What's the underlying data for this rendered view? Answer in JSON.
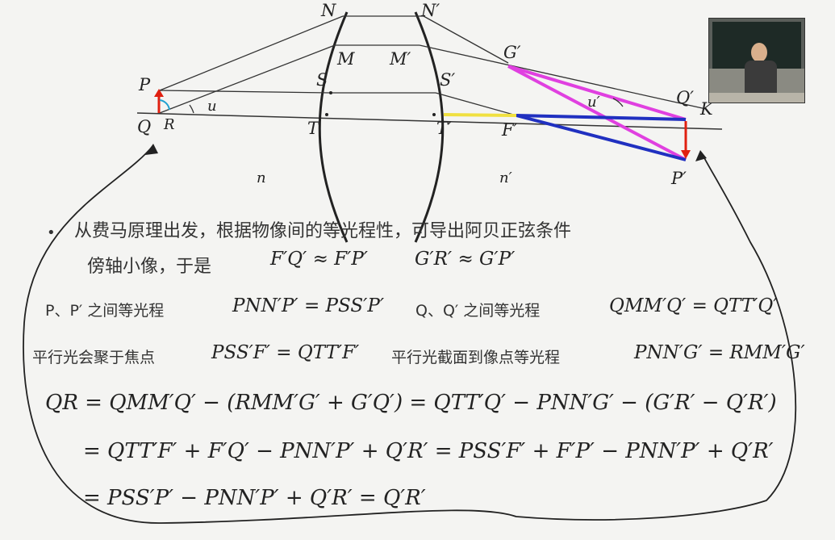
{
  "diagram": {
    "labels": {
      "N": "N",
      "N_prime": "N′",
      "M": "M",
      "M_prime": "M′",
      "G_prime": "G′",
      "P": "P",
      "S": "S",
      "S_prime": "S′",
      "u": "u",
      "u_prime": "u′",
      "Q": "Q",
      "R": "R",
      "T": "T",
      "T_prime": "T′",
      "F_prime": "F′",
      "Q_prime": "Q′",
      "K": "K",
      "P_prime": "P′",
      "n": "n",
      "n_prime": "n′"
    },
    "colors": {
      "rays": "#333333",
      "magenta": "#e040e0",
      "blue": "#2030c0",
      "yellow": "#f0e040",
      "arrow_red": "#e02010",
      "angle_cyan": "#20a0d0"
    }
  },
  "video_inset": {
    "icon": "lecturer-video-icon"
  },
  "text": {
    "bullet": "•",
    "line1": "从费马原理出发，根据物像间的等光程性，可导出阿贝正弦条件",
    "line2": "傍轴小像，于是",
    "line2_eq1": "F′Q′ ≈ F′P′",
    "line2_eq2": "G′R′ ≈ G′P′",
    "line3_a": "P、P′ 之间等光程",
    "line3_eq1": "PNN′P′ = PSS′P′",
    "line3_b": "Q、Q′ 之间等光程",
    "line3_eq2": "QMM′Q′ = QTT′Q′",
    "line4_a": "平行光会聚于焦点",
    "line4_eq1": "PSS′F′ = QTT′F′",
    "line4_b": "平行光截面到像点等光程",
    "line4_eq2": "PNN′G′ = RMM′G′",
    "line5": "QR = QMM′Q′ − (RMM′G′ + G′Q′) = QTT′Q′ − PNN′G′ − (G′R′ − Q′R′)",
    "line6": "= QTT′F′ + F′Q′ −  PNN′P′ + Q′R′ = PSS′F′ +  F′P′ − PNN′P′ + Q′R′",
    "line7": "= PSS′P′ − PNN′P′ + Q′R′  = Q′R′"
  }
}
